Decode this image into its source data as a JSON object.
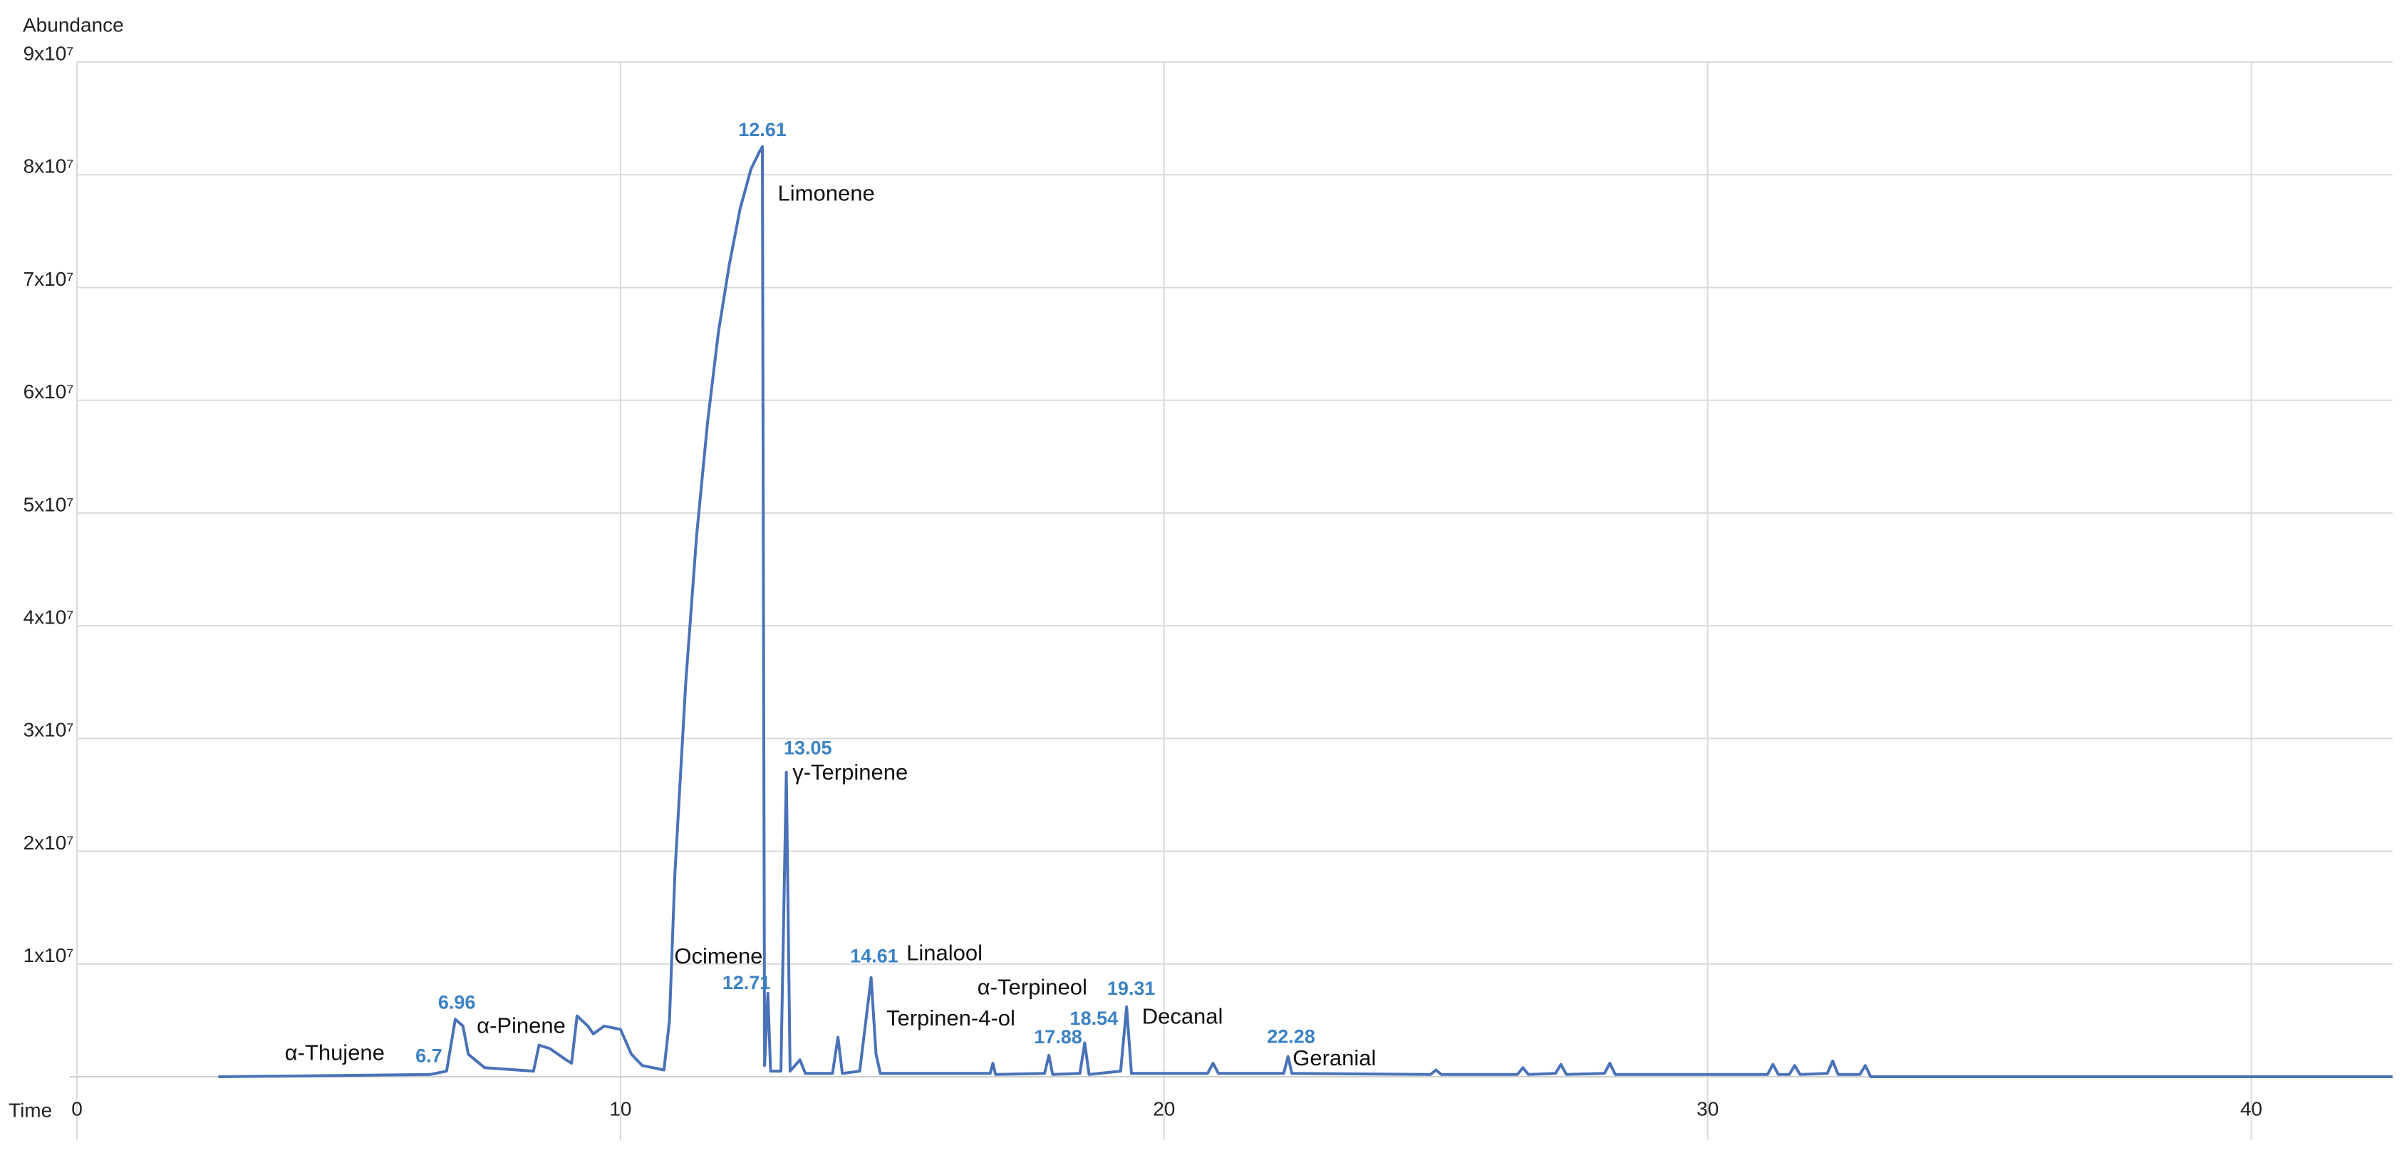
{
  "chart_data": {
    "type": "line",
    "y_axis_title": "Abundance",
    "x_axis_title": "Time",
    "xlim": [
      0,
      42.6
    ],
    "ylim": [
      0,
      90000000
    ],
    "xticks": [
      0,
      10,
      20,
      30,
      40
    ],
    "yticks": [
      {
        "value": 10000000,
        "label": "1x10⁷"
      },
      {
        "value": 20000000,
        "label": "2x10⁷"
      },
      {
        "value": 30000000,
        "label": "3x10⁷"
      },
      {
        "value": 40000000,
        "label": "4x10⁷"
      },
      {
        "value": 50000000,
        "label": "5x10⁷"
      },
      {
        "value": 60000000,
        "label": "6x10⁷"
      },
      {
        "value": 70000000,
        "label": "7x10⁷"
      },
      {
        "value": 80000000,
        "label": "8x10⁷"
      },
      {
        "value": 90000000,
        "label": "9x10⁷"
      }
    ],
    "grid": true,
    "series": [
      {
        "color": "#4a72b8",
        "x": [
          2.6,
          6.5,
          6.8,
          6.96,
          7.1,
          7.2,
          7.5,
          8.4,
          8.5,
          8.7,
          9.0,
          9.1,
          9.2,
          9.4,
          9.5,
          9.7,
          10.0,
          10.2,
          10.4,
          10.8,
          10.9,
          11.0,
          11.2,
          11.4,
          11.6,
          11.8,
          12.0,
          12.2,
          12.4,
          12.55,
          12.61,
          12.65,
          12.71,
          12.76,
          12.95,
          13.05,
          13.12,
          13.3,
          13.4,
          13.9,
          14.0,
          14.08,
          14.4,
          14.61,
          14.7,
          14.78,
          16.8,
          16.85,
          16.9,
          17.8,
          17.88,
          17.95,
          18.45,
          18.54,
          18.62,
          19.2,
          19.31,
          19.4,
          20.8,
          20.9,
          21.0,
          22.2,
          22.28,
          22.35,
          24.9,
          25.0,
          25.1,
          26.5,
          26.6,
          26.7,
          27.2,
          27.3,
          27.4,
          28.1,
          28.2,
          28.3,
          31.1,
          31.2,
          31.3,
          31.5,
          31.6,
          31.7,
          32.2,
          32.3,
          32.4,
          32.8,
          32.9,
          33.0,
          42.6
        ],
        "values": [
          0,
          200000,
          500000,
          5100000,
          4500000,
          2000000,
          800000,
          500000,
          2800000,
          2500000,
          1500000,
          1200000,
          5400000,
          4500000,
          3800000,
          4500000,
          4200000,
          2000000,
          1000000,
          600000,
          5000000,
          18000000,
          35000000,
          48000000,
          58000000,
          66000000,
          72000000,
          77000000,
          80500000,
          82000000,
          82500000,
          1000000,
          7400000,
          500000,
          500000,
          27000000,
          500000,
          1500000,
          300000,
          300000,
          3500000,
          300000,
          500000,
          8800000,
          2000000,
          300000,
          300000,
          1200000,
          200000,
          300000,
          1900000,
          200000,
          300000,
          3000000,
          200000,
          500000,
          6200000,
          300000,
          300000,
          1200000,
          300000,
          300000,
          1800000,
          300000,
          200000,
          600000,
          200000,
          200000,
          800000,
          200000,
          300000,
          1100000,
          200000,
          300000,
          1200000,
          200000,
          200000,
          1100000,
          200000,
          200000,
          1000000,
          200000,
          300000,
          1400000,
          200000,
          200000,
          1000000,
          0,
          0
        ]
      }
    ],
    "peaks": [
      {
        "time": 6.7,
        "abundance": 500000,
        "name": "α-Thujene"
      },
      {
        "time": 6.96,
        "abundance": 5100000,
        "name": "α-Pinene"
      },
      {
        "time": 12.61,
        "abundance": 82500000,
        "name": "Limonene"
      },
      {
        "time": 12.71,
        "abundance": 7400000,
        "name": "Ocimene"
      },
      {
        "time": 13.05,
        "abundance": 27000000,
        "name": "γ-Terpinene"
      },
      {
        "time": 14.61,
        "abundance": 8800000,
        "name": "Linalool"
      },
      {
        "time": 17.88,
        "abundance": 1900000,
        "name": "Terpinen-4-ol"
      },
      {
        "time": 18.54,
        "abundance": 3000000,
        "name": "α-Terpineol"
      },
      {
        "time": 19.31,
        "abundance": 6200000,
        "name": "Decanal"
      },
      {
        "time": 22.28,
        "abundance": 1800000,
        "name": "Geranial"
      }
    ]
  }
}
